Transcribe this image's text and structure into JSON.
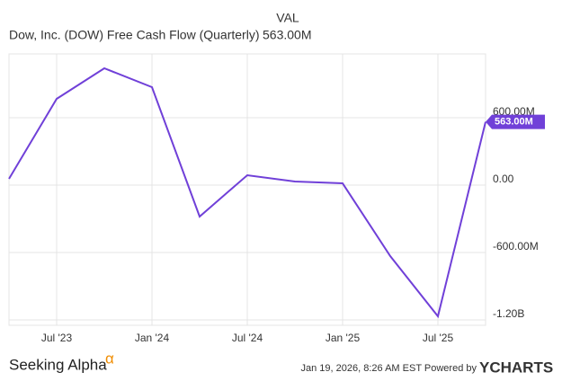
{
  "chart_data": {
    "type": "line",
    "title": "Dow, Inc. (DOW) Free Cash Flow (Quarterly)",
    "legend_header": "VAL",
    "categories": [
      null,
      "Jul '23",
      null,
      "Jan '24",
      null,
      "Jul '24",
      null,
      "Jan '25",
      null,
      "Jul '25",
      null
    ],
    "series": [
      {
        "name": "Dow, Inc. (DOW) Free Cash Flow (Quarterly)",
        "color": "#7040d8",
        "values": [
          56,
          768,
          1040,
          872,
          -280,
          88,
          32,
          16,
          -632,
          -1168,
          563
        ],
        "value_labels": [
          null,
          null,
          null,
          null,
          null,
          null,
          null,
          null,
          null,
          null,
          "563.00M"
        ]
      }
    ],
    "ylim": [
      -1248,
      1168
    ],
    "yticks": [
      {
        "value": 600,
        "label": "600.00M"
      },
      {
        "value": 0,
        "label": "0.00"
      },
      {
        "value": -600,
        "label": "-600.00M"
      },
      {
        "value": -1200,
        "label": "-1.20B"
      }
    ],
    "grid": true
  },
  "footer": {
    "logo": "Seeking Alpha",
    "logo_mark": "α",
    "timestamp": "Jan 19, 2026, 8:26 AM EST Powered by",
    "brand": "YCHARTS"
  }
}
